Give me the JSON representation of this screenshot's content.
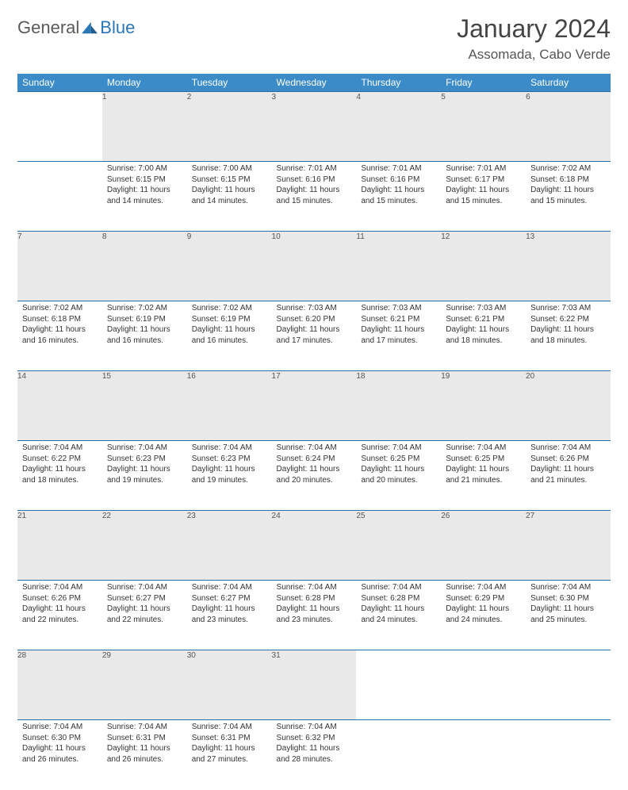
{
  "brand": {
    "part1": "General",
    "part2": "Blue"
  },
  "title": "January 2024",
  "location": "Assomada, Cabo Verde",
  "header_bg": "#3b8bc9",
  "daynum_bg": "#e9e9e9",
  "rule_color": "#2a6fa3",
  "text_color": "#333333",
  "font_size_cell": 10,
  "days": [
    "Sunday",
    "Monday",
    "Tuesday",
    "Wednesday",
    "Thursday",
    "Friday",
    "Saturday"
  ],
  "weeks": [
    [
      null,
      {
        "n": "1",
        "sr": "7:00 AM",
        "ss": "6:15 PM",
        "dl": "11 hours and 14 minutes."
      },
      {
        "n": "2",
        "sr": "7:00 AM",
        "ss": "6:15 PM",
        "dl": "11 hours and 14 minutes."
      },
      {
        "n": "3",
        "sr": "7:01 AM",
        "ss": "6:16 PM",
        "dl": "11 hours and 15 minutes."
      },
      {
        "n": "4",
        "sr": "7:01 AM",
        "ss": "6:16 PM",
        "dl": "11 hours and 15 minutes."
      },
      {
        "n": "5",
        "sr": "7:01 AM",
        "ss": "6:17 PM",
        "dl": "11 hours and 15 minutes."
      },
      {
        "n": "6",
        "sr": "7:02 AM",
        "ss": "6:18 PM",
        "dl": "11 hours and 15 minutes."
      }
    ],
    [
      {
        "n": "7",
        "sr": "7:02 AM",
        "ss": "6:18 PM",
        "dl": "11 hours and 16 minutes."
      },
      {
        "n": "8",
        "sr": "7:02 AM",
        "ss": "6:19 PM",
        "dl": "11 hours and 16 minutes."
      },
      {
        "n": "9",
        "sr": "7:02 AM",
        "ss": "6:19 PM",
        "dl": "11 hours and 16 minutes."
      },
      {
        "n": "10",
        "sr": "7:03 AM",
        "ss": "6:20 PM",
        "dl": "11 hours and 17 minutes."
      },
      {
        "n": "11",
        "sr": "7:03 AM",
        "ss": "6:21 PM",
        "dl": "11 hours and 17 minutes."
      },
      {
        "n": "12",
        "sr": "7:03 AM",
        "ss": "6:21 PM",
        "dl": "11 hours and 18 minutes."
      },
      {
        "n": "13",
        "sr": "7:03 AM",
        "ss": "6:22 PM",
        "dl": "11 hours and 18 minutes."
      }
    ],
    [
      {
        "n": "14",
        "sr": "7:04 AM",
        "ss": "6:22 PM",
        "dl": "11 hours and 18 minutes."
      },
      {
        "n": "15",
        "sr": "7:04 AM",
        "ss": "6:23 PM",
        "dl": "11 hours and 19 minutes."
      },
      {
        "n": "16",
        "sr": "7:04 AM",
        "ss": "6:23 PM",
        "dl": "11 hours and 19 minutes."
      },
      {
        "n": "17",
        "sr": "7:04 AM",
        "ss": "6:24 PM",
        "dl": "11 hours and 20 minutes."
      },
      {
        "n": "18",
        "sr": "7:04 AM",
        "ss": "6:25 PM",
        "dl": "11 hours and 20 minutes."
      },
      {
        "n": "19",
        "sr": "7:04 AM",
        "ss": "6:25 PM",
        "dl": "11 hours and 21 minutes."
      },
      {
        "n": "20",
        "sr": "7:04 AM",
        "ss": "6:26 PM",
        "dl": "11 hours and 21 minutes."
      }
    ],
    [
      {
        "n": "21",
        "sr": "7:04 AM",
        "ss": "6:26 PM",
        "dl": "11 hours and 22 minutes."
      },
      {
        "n": "22",
        "sr": "7:04 AM",
        "ss": "6:27 PM",
        "dl": "11 hours and 22 minutes."
      },
      {
        "n": "23",
        "sr": "7:04 AM",
        "ss": "6:27 PM",
        "dl": "11 hours and 23 minutes."
      },
      {
        "n": "24",
        "sr": "7:04 AM",
        "ss": "6:28 PM",
        "dl": "11 hours and 23 minutes."
      },
      {
        "n": "25",
        "sr": "7:04 AM",
        "ss": "6:28 PM",
        "dl": "11 hours and 24 minutes."
      },
      {
        "n": "26",
        "sr": "7:04 AM",
        "ss": "6:29 PM",
        "dl": "11 hours and 24 minutes."
      },
      {
        "n": "27",
        "sr": "7:04 AM",
        "ss": "6:30 PM",
        "dl": "11 hours and 25 minutes."
      }
    ],
    [
      {
        "n": "28",
        "sr": "7:04 AM",
        "ss": "6:30 PM",
        "dl": "11 hours and 26 minutes."
      },
      {
        "n": "29",
        "sr": "7:04 AM",
        "ss": "6:31 PM",
        "dl": "11 hours and 26 minutes."
      },
      {
        "n": "30",
        "sr": "7:04 AM",
        "ss": "6:31 PM",
        "dl": "11 hours and 27 minutes."
      },
      {
        "n": "31",
        "sr": "7:04 AM",
        "ss": "6:32 PM",
        "dl": "11 hours and 28 minutes."
      },
      null,
      null,
      null
    ]
  ],
  "labels": {
    "sunrise": "Sunrise:",
    "sunset": "Sunset:",
    "daylight": "Daylight:"
  }
}
